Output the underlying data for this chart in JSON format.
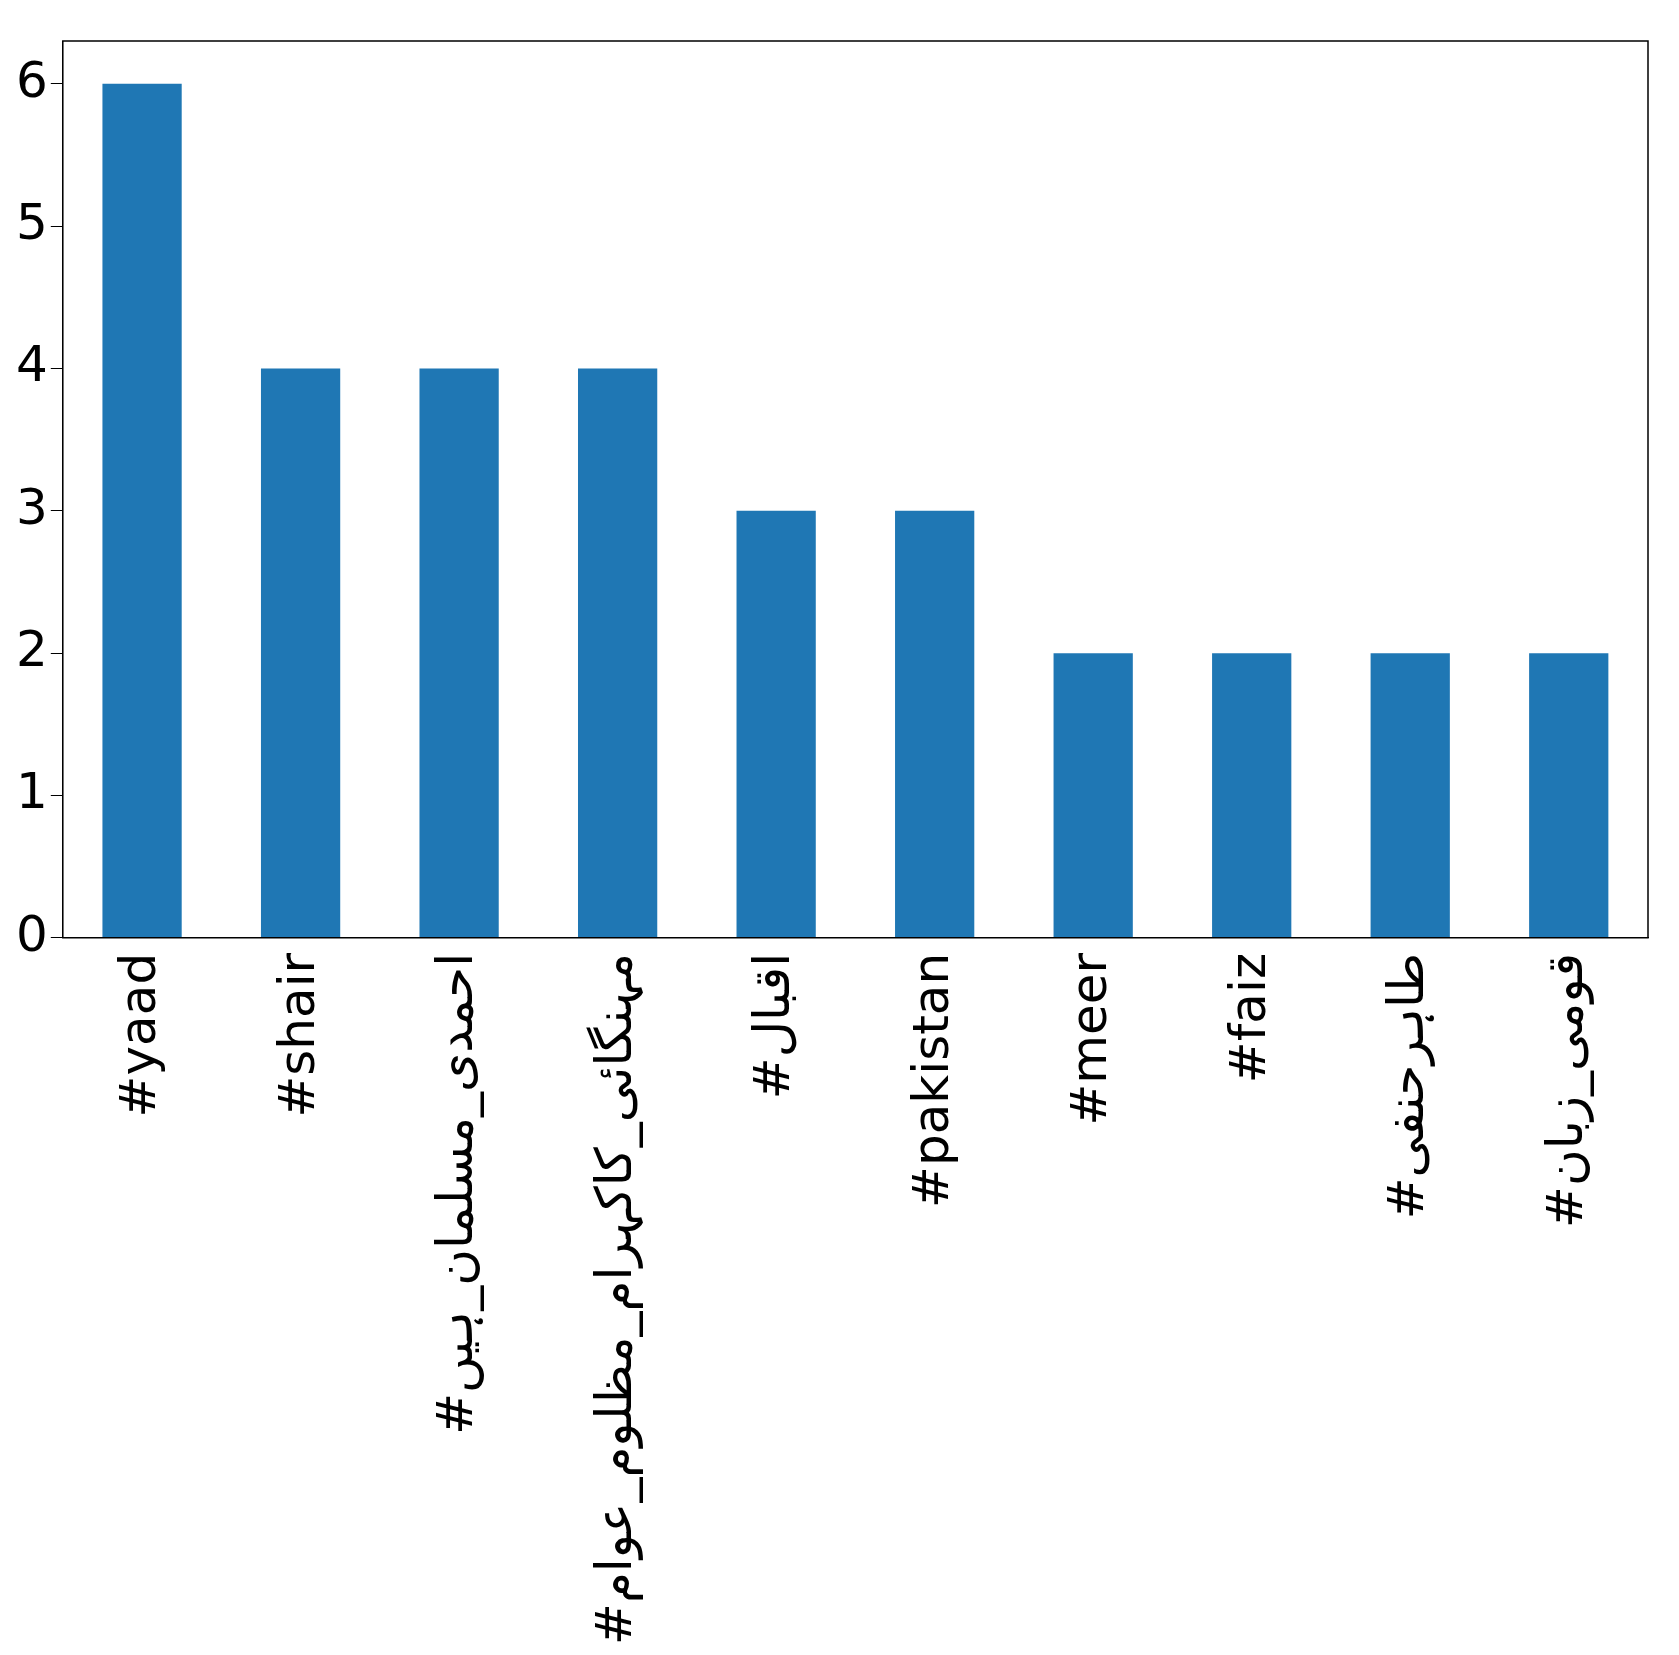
{
  "chart_data": {
    "type": "bar",
    "categories": [
      "#yaad",
      "#shair",
      "#احمدی_مسلمان_ہیں",
      "#مہنگائی_کاکہرام_مظلوم_عوام",
      "#اقبال",
      "#pakistan",
      "#meer",
      "#faiz",
      "#طاہرحنفی",
      "#قومی_زبان"
    ],
    "values": [
      6,
      4,
      4,
      4,
      3,
      3,
      2,
      2,
      2,
      2
    ],
    "color": "#1f77b4",
    "ylim": [
      0,
      6.3
    ],
    "yticks": [
      0,
      1,
      2,
      3,
      4,
      5,
      6
    ],
    "grid": false,
    "legend": false
  }
}
